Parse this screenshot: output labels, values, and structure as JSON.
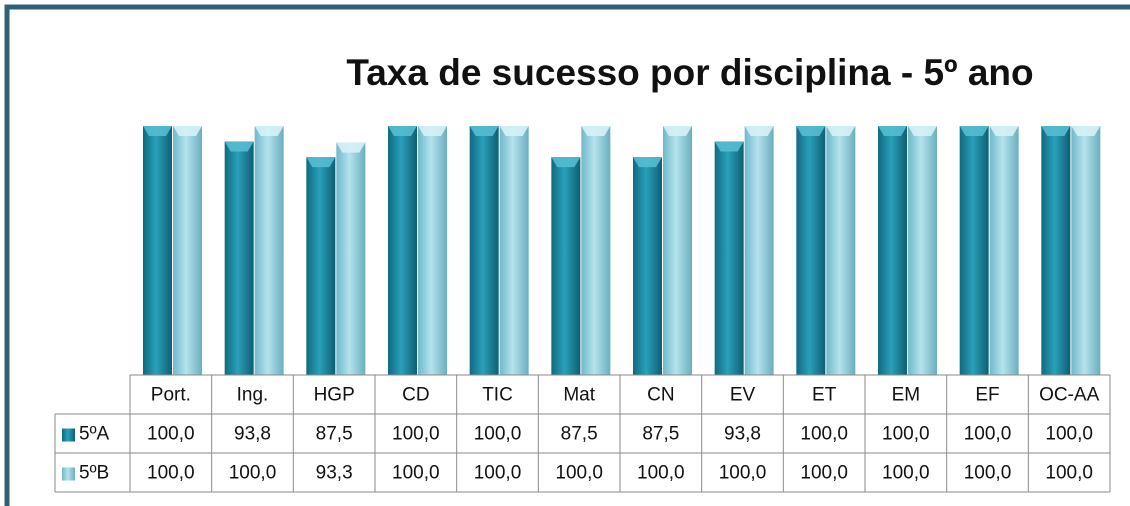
{
  "chart_data": {
    "type": "bar",
    "title": "Taxa de sucesso por disciplina - 5º ano",
    "categories": [
      "Port.",
      "Ing.",
      "HGP",
      "CD",
      "TIC",
      "Mat",
      "CN",
      "EV",
      "ET",
      "EM",
      "EF",
      "OC-AA"
    ],
    "series": [
      {
        "name": "5ºA",
        "color": "#1f8ea8",
        "values": [
          100,
          93.8,
          87.5,
          100,
          100,
          87.5,
          87.5,
          93.8,
          100,
          100,
          100,
          100
        ],
        "value_labels": [
          "100,0",
          "93,8",
          "87,5",
          "100,0",
          "100,0",
          "87,5",
          "87,5",
          "93,8",
          "100,0",
          "100,0",
          "100,0",
          "100,0"
        ]
      },
      {
        "name": "5ºB",
        "color": "#8fd0de",
        "values": [
          100,
          100,
          93.3,
          100,
          100,
          100,
          100,
          100,
          100,
          100,
          100,
          100
        ],
        "value_labels": [
          "100,0",
          "100,0",
          "93,3",
          "100,0",
          "100,0",
          "100,0",
          "100,0",
          "100,0",
          "100,0",
          "100,0",
          "100,0",
          "100,0"
        ]
      }
    ],
    "ylim": [
      0,
      100
    ],
    "data_table": true
  }
}
